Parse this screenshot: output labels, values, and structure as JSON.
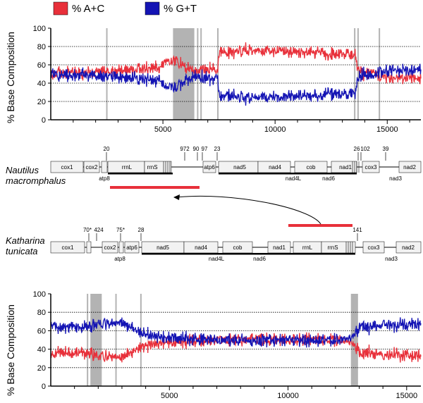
{
  "legend": {
    "ac_label": "% A+C",
    "gt_label": "% G+T",
    "ac_color": "#e8303a",
    "gt_color": "#1414b4"
  },
  "chart_data": [
    {
      "type": "line",
      "xlim": [
        0,
        16500
      ],
      "ylim": [
        0,
        100
      ],
      "ylabel": "% Base Composition",
      "yticks": [
        "0",
        "20",
        "40",
        "60",
        "80",
        "100"
      ],
      "xticks": [
        "5000",
        "10000",
        "15000"
      ],
      "xtick_values": [
        5000,
        10000,
        15000
      ],
      "gridlines": [
        20,
        40,
        60,
        80
      ],
      "markers": [
        2500,
        5500,
        6550,
        6700,
        7450,
        13550,
        13700,
        14650
      ],
      "shaded": [
        [
          5450,
          6400
        ]
      ],
      "series": [
        {
          "name": "% A+C",
          "x": [
            0,
            2500,
            4500,
            5500,
            6400,
            7450,
            7500,
            9000,
            11000,
            13000,
            13600,
            13700,
            15000,
            16500
          ],
          "values": [
            50,
            52,
            56,
            64,
            53,
            55,
            73,
            77,
            74,
            72,
            71,
            52,
            47,
            45
          ]
        },
        {
          "name": "% G+T",
          "x": [
            0,
            2500,
            4500,
            5500,
            6400,
            7450,
            7500,
            9000,
            11000,
            13000,
            13600,
            13700,
            15000,
            16500
          ],
          "values": [
            50,
            48,
            44,
            36,
            47,
            45,
            27,
            23,
            26,
            28,
            29,
            48,
            53,
            55
          ]
        }
      ]
    },
    {
      "type": "line",
      "xlim": [
        0,
        15600
      ],
      "ylim": [
        0,
        100
      ],
      "ylabel": "% Base Composition",
      "yticks": [
        "0",
        "20",
        "40",
        "60",
        "80",
        "100"
      ],
      "xticks": [
        "5000",
        "10000",
        "15000"
      ],
      "xtick_values": [
        5000,
        10000,
        15000
      ],
      "gridlines": [
        20,
        40,
        60,
        80
      ],
      "markers": [
        1550,
        1700,
        2050,
        2750,
        3800,
        12800
      ],
      "shaded": [
        [
          1700,
          2150
        ],
        [
          12650,
          12950
        ]
      ],
      "series": [
        {
          "name": "% A+C",
          "x": [
            0,
            1000,
            2000,
            3000,
            3800,
            5000,
            7000,
            9000,
            11000,
            12700,
            13000,
            14000,
            15600
          ],
          "values": [
            35,
            37,
            33,
            30,
            44,
            47,
            50,
            51,
            50,
            48,
            37,
            34,
            33
          ]
        },
        {
          "name": "% G+T",
          "x": [
            0,
            1000,
            2000,
            3000,
            3800,
            5000,
            7000,
            9000,
            11000,
            12700,
            13000,
            14000,
            15600
          ],
          "values": [
            65,
            63,
            67,
            70,
            56,
            53,
            50,
            49,
            50,
            52,
            63,
            66,
            67
          ]
        }
      ]
    }
  ],
  "nautilus": {
    "name_line1": "Nautilus",
    "name_line2": "macromphalus",
    "genes_top": [
      "cox1",
      "cox2",
      "rrnL",
      "rrnS",
      "atp6",
      "nad5",
      "nad4",
      "cob",
      "nad1",
      "cox3",
      "nad2"
    ],
    "genes_bottom": [
      "atp8",
      "nad4L",
      "nad6",
      "nad3"
    ],
    "numbers": [
      "20",
      "972",
      "90",
      "97",
      "23",
      "26",
      "102",
      "39"
    ]
  },
  "katharina": {
    "name_line1": "Katharina",
    "name_line2": "tunicata",
    "genes_top": [
      "cox1",
      "cox2",
      "atp6",
      "nad5",
      "nad4",
      "cob",
      "nad1",
      "rrnL",
      "rrnS",
      "cox3",
      "nad2"
    ],
    "genes_bottom": [
      "atp8",
      "nad4L",
      "nad6",
      "nad3"
    ],
    "numbers": [
      "70*",
      "424",
      "75*",
      "28",
      "141"
    ]
  }
}
